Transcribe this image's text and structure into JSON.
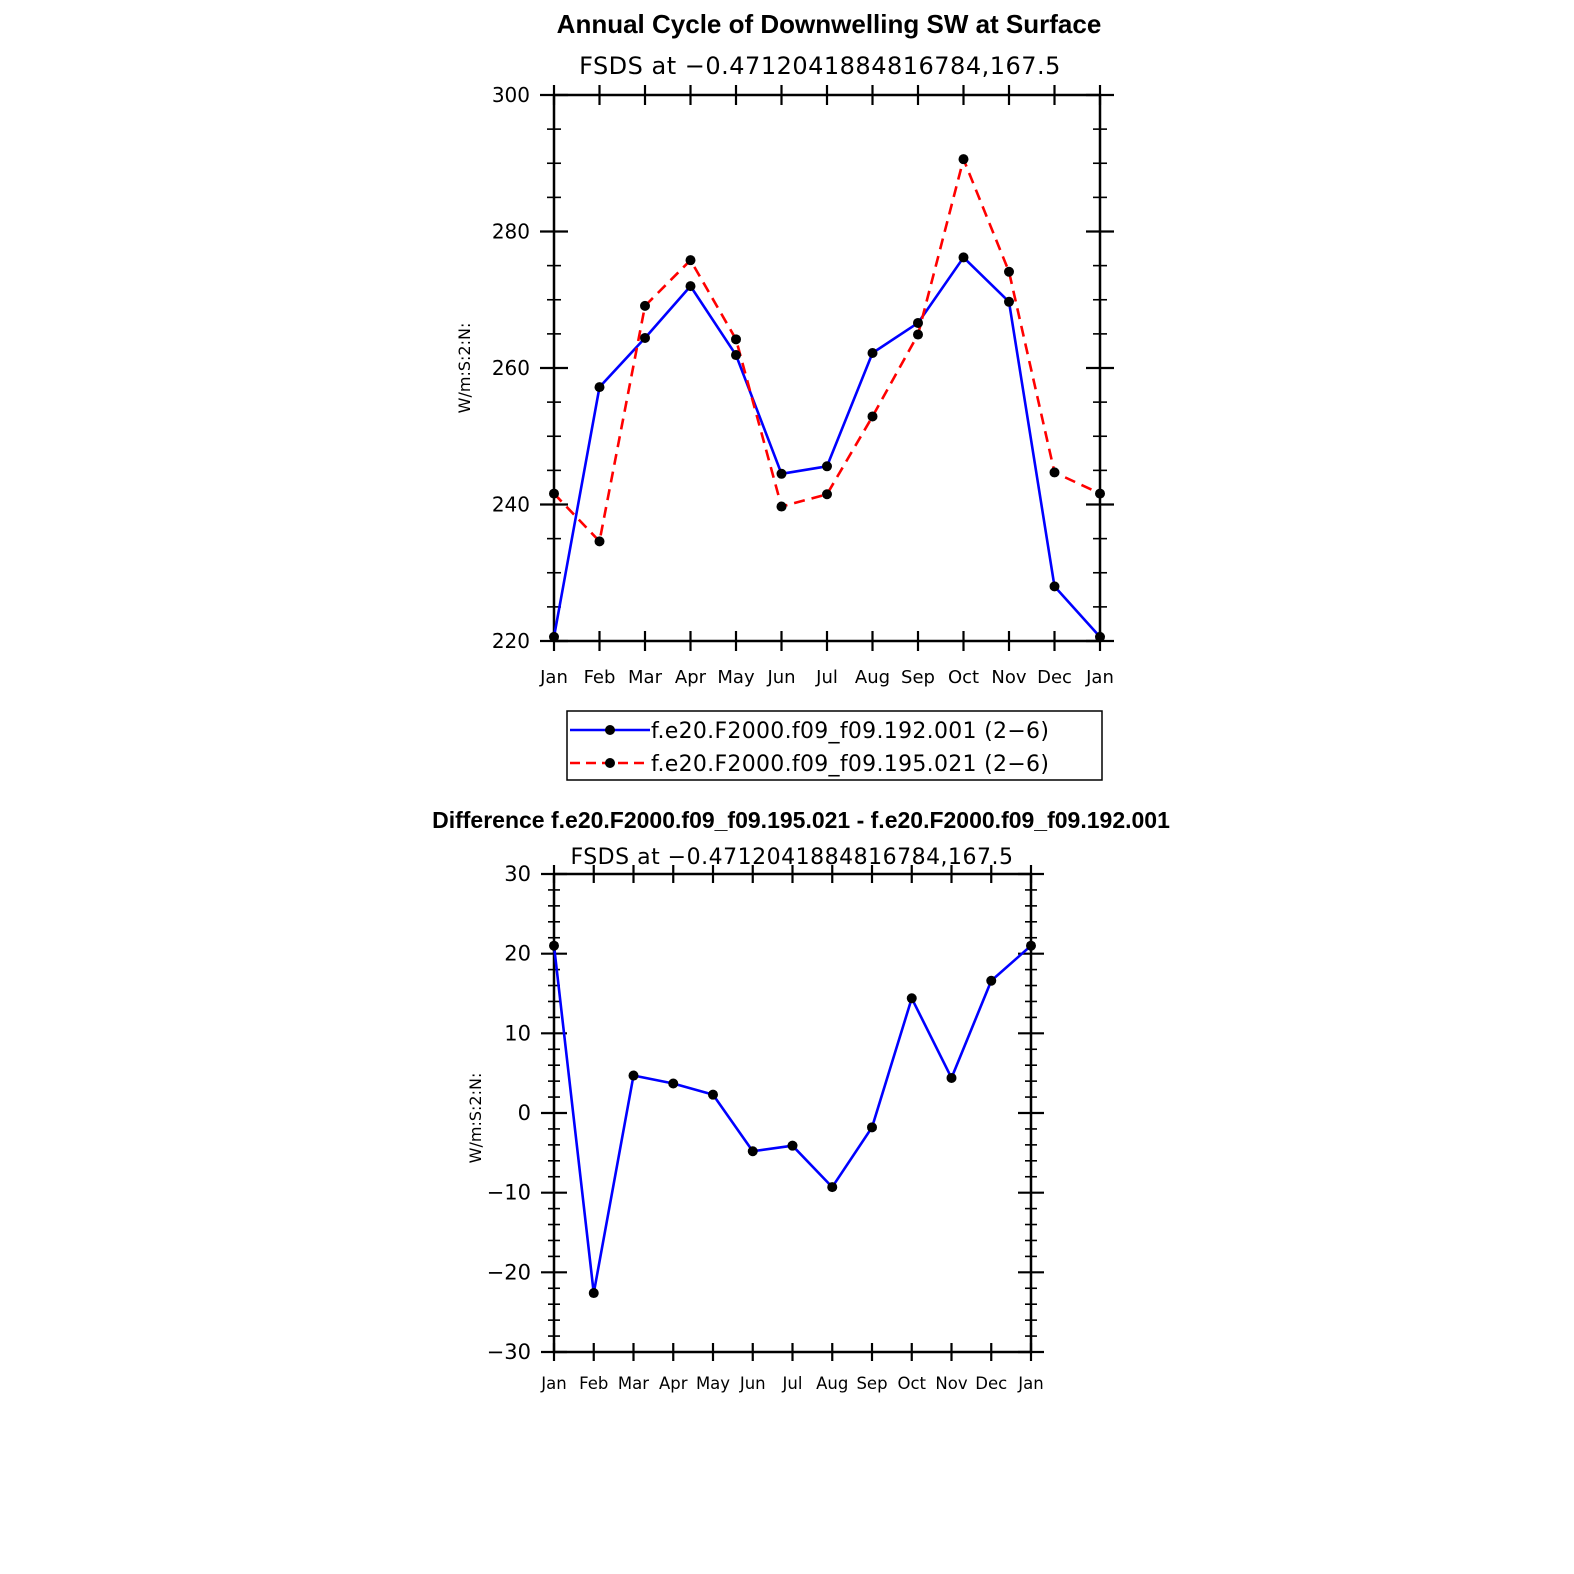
{
  "chart_data": [
    {
      "type": "line",
      "title": "Annual Cycle of Downwelling SW at Surface",
      "subtitle": "FSDS at −0.4712041884816784,167.5",
      "xlabel": "",
      "ylabel": "W/m:S:2:N:",
      "categories": [
        "Jan",
        "Feb",
        "Mar",
        "Apr",
        "May",
        "Jun",
        "Jul",
        "Aug",
        "Sep",
        "Oct",
        "Nov",
        "Dec",
        "Jan"
      ],
      "ylim": [
        220,
        300
      ],
      "yticks": [
        "220",
        "240",
        "260",
        "280",
        "300"
      ],
      "grid": false,
      "legend_position": "bottom",
      "series": [
        {
          "name": "f.e20.F2000.f09_f09.192.001 (2−6)",
          "color": "#0000ff",
          "dash": "solid",
          "values": [
            220.6,
            257.2,
            264.4,
            272.0,
            261.9,
            244.5,
            245.6,
            262.2,
            266.6,
            276.2,
            269.7,
            228.0,
            220.6
          ]
        },
        {
          "name": "f.e20.F2000.f09_f09.195.021 (2−6)",
          "color": "#ff0000",
          "dash": "dashed",
          "values": [
            241.6,
            234.6,
            269.1,
            275.8,
            264.2,
            239.7,
            241.5,
            252.9,
            264.9,
            290.6,
            274.1,
            244.7,
            241.6
          ]
        }
      ]
    },
    {
      "type": "line",
      "title": "Difference f.e20.F2000.f09_f09.195.021 - f.e20.F2000.f09_f09.192.001",
      "subtitle": "FSDS at −0.4712041884816784,167.5",
      "xlabel": "",
      "ylabel": "W/m:S:2:N:",
      "categories": [
        "Jan",
        "Feb",
        "Mar",
        "Apr",
        "May",
        "Jun",
        "Jul",
        "Aug",
        "Sep",
        "Oct",
        "Nov",
        "Dec",
        "Jan"
      ],
      "ylim": [
        -30,
        30
      ],
      "yticks": [
        "−30",
        "−20",
        "−10",
        "0",
        "10",
        "20",
        "30"
      ],
      "grid": false,
      "series": [
        {
          "color": "#0000ff",
          "dash": "solid",
          "values": [
            21.0,
            -22.6,
            4.7,
            3.7,
            2.3,
            -4.8,
            -4.1,
            -9.3,
            -1.8,
            14.4,
            4.4,
            16.6,
            21.0
          ]
        }
      ]
    }
  ]
}
